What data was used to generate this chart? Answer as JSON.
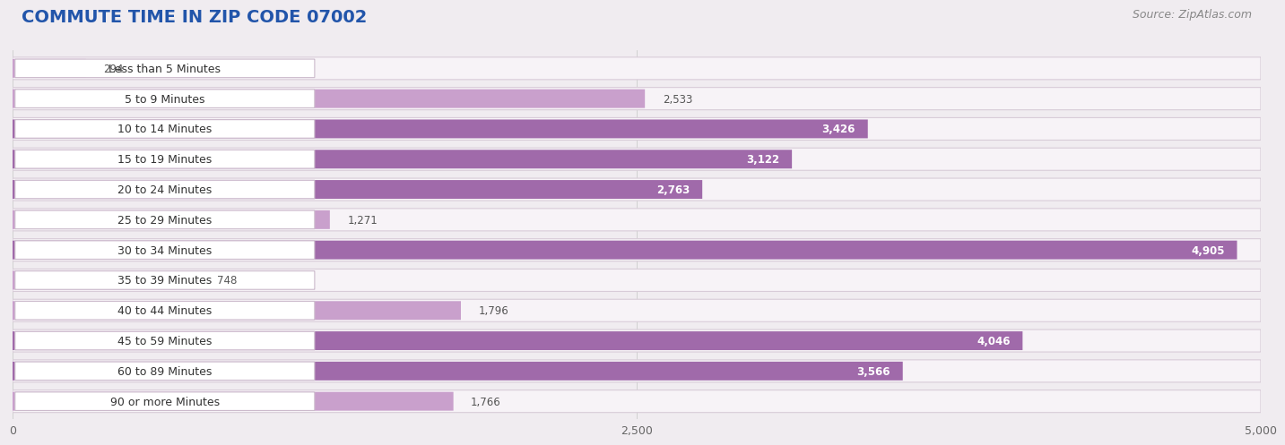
{
  "title": "COMMUTE TIME IN ZIP CODE 07002",
  "source_text": "Source: ZipAtlas.com",
  "categories": [
    "Less than 5 Minutes",
    "5 to 9 Minutes",
    "10 to 14 Minutes",
    "15 to 19 Minutes",
    "20 to 24 Minutes",
    "25 to 29 Minutes",
    "30 to 34 Minutes",
    "35 to 39 Minutes",
    "40 to 44 Minutes",
    "45 to 59 Minutes",
    "60 to 89 Minutes",
    "90 or more Minutes"
  ],
  "values": [
    294,
    2533,
    3426,
    3122,
    2763,
    1271,
    4905,
    748,
    1796,
    4046,
    3566,
    1766
  ],
  "bar_color_light": "#c9a0cc",
  "bar_color_dark": "#a06aaa",
  "bar_bg_color": "#e8daea",
  "row_bg_color": "#f7f3f7",
  "row_border_color": "#d8ccd8",
  "xlim": [
    0,
    5000
  ],
  "xticks": [
    0,
    2500,
    5000
  ],
  "background_color": "#f0ecf0",
  "title_color": "#2255aa",
  "title_fontsize": 14,
  "source_fontsize": 9,
  "label_fontsize": 9,
  "value_fontsize": 8.5,
  "dark_threshold": 2700,
  "pill_color": "#ffffff",
  "pill_border_color": "#ccbbcc",
  "label_text_color": "#333333",
  "value_text_dark": "#ffffff",
  "value_text_light": "#555555"
}
